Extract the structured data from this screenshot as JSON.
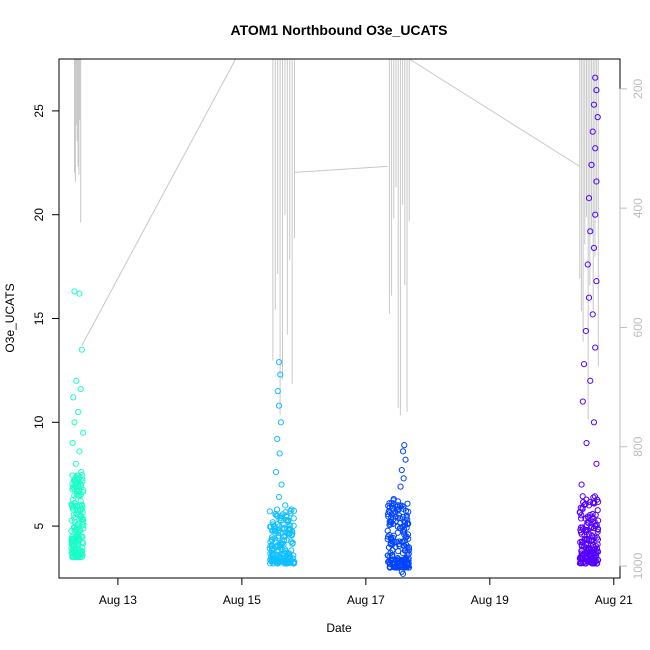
{
  "chart_data": {
    "type": "scatter",
    "title": "ATOM1 Northbound O3e_UCATS",
    "xlabel": "Date",
    "ylabel": "O3e_UCATS",
    "x_unit": "days (August)",
    "xlim": [
      12.05,
      21.1
    ],
    "ylim": [
      2.5,
      27.5
    ],
    "x_ticks": [
      {
        "value": 13,
        "label": "Aug 13"
      },
      {
        "value": 15,
        "label": "Aug 15"
      },
      {
        "value": 17,
        "label": "Aug 17"
      },
      {
        "value": 19,
        "label": "Aug 19"
      },
      {
        "value": 21,
        "label": "Aug 21"
      }
    ],
    "y_ticks": [
      5,
      10,
      15,
      20,
      25
    ],
    "y2_ticks": [
      200,
      400,
      600,
      800,
      1000
    ],
    "y2_range": [
      1020,
      150
    ],
    "grid": false,
    "series": [
      {
        "color": "#1bffc8",
        "x_range": [
          12.25,
          12.45
        ],
        "y_base_range": [
          3.5,
          7.5
        ],
        "y_max": 16.3,
        "points": [
          [
            12.3,
            16.3
          ],
          [
            12.38,
            16.2
          ],
          [
            12.42,
            13.5
          ],
          [
            12.33,
            12.0
          ],
          [
            12.4,
            11.6
          ],
          [
            12.28,
            11.2
          ],
          [
            12.36,
            10.5
          ],
          [
            12.3,
            10.0
          ],
          [
            12.44,
            9.5
          ],
          [
            12.27,
            9.0
          ],
          [
            12.38,
            8.6
          ],
          [
            12.32,
            8.0
          ],
          [
            12.41,
            7.6
          ],
          [
            12.29,
            7.2
          ],
          [
            12.35,
            6.8
          ],
          [
            12.4,
            6.5
          ],
          [
            12.26,
            6.0
          ],
          [
            12.33,
            5.6
          ],
          [
            12.43,
            5.2
          ],
          [
            12.3,
            4.8
          ],
          [
            12.37,
            4.4
          ],
          [
            12.28,
            4.0
          ],
          [
            12.42,
            3.8
          ],
          [
            12.34,
            3.6
          ],
          [
            12.39,
            3.5
          ]
        ]
      },
      {
        "color": "#10bfff",
        "x_range": [
          15.45,
          15.85
        ],
        "y_base_range": [
          3.2,
          5.8
        ],
        "y_max": 12.9,
        "points": [
          [
            15.6,
            12.9
          ],
          [
            15.62,
            12.3
          ],
          [
            15.58,
            11.5
          ],
          [
            15.6,
            10.8
          ],
          [
            15.63,
            10.0
          ],
          [
            15.57,
            9.2
          ],
          [
            15.61,
            8.5
          ],
          [
            15.55,
            7.6
          ],
          [
            15.64,
            7.0
          ],
          [
            15.6,
            6.4
          ],
          [
            15.7,
            6.0
          ],
          [
            15.8,
            5.8
          ],
          [
            15.75,
            5.2
          ],
          [
            15.5,
            4.8
          ],
          [
            15.68,
            4.5
          ],
          [
            15.82,
            4.2
          ],
          [
            15.52,
            3.9
          ],
          [
            15.72,
            3.7
          ],
          [
            15.78,
            3.5
          ],
          [
            15.66,
            3.3
          ],
          [
            15.58,
            3.2
          ]
        ]
      },
      {
        "color": "#0044ff",
        "x_range": [
          17.35,
          17.7
        ],
        "y_base_range": [
          3.0,
          6.3
        ],
        "y_max": 8.9,
        "points": [
          [
            17.62,
            8.9
          ],
          [
            17.6,
            8.6
          ],
          [
            17.64,
            8.2
          ],
          [
            17.58,
            7.7
          ],
          [
            17.61,
            7.3
          ],
          [
            17.56,
            6.9
          ],
          [
            17.45,
            6.3
          ],
          [
            17.38,
            6.1
          ],
          [
            17.5,
            5.8
          ],
          [
            17.66,
            5.5
          ],
          [
            17.4,
            5.2
          ],
          [
            17.55,
            4.9
          ],
          [
            17.68,
            4.6
          ],
          [
            17.42,
            4.3
          ],
          [
            17.48,
            4.0
          ],
          [
            17.6,
            3.7
          ],
          [
            17.52,
            3.4
          ],
          [
            17.63,
            3.1
          ],
          [
            17.58,
            2.8
          ],
          [
            17.6,
            2.7
          ]
        ]
      },
      {
        "color": "#5500ff",
        "x_range": [
          20.45,
          20.75
        ],
        "y_base_range": [
          3.2,
          6.5
        ],
        "y_max": 26.6,
        "points": [
          [
            20.7,
            26.6
          ],
          [
            20.72,
            26.0
          ],
          [
            20.68,
            25.3
          ],
          [
            20.74,
            24.7
          ],
          [
            20.66,
            24.0
          ],
          [
            20.7,
            23.2
          ],
          [
            20.64,
            22.4
          ],
          [
            20.72,
            21.6
          ],
          [
            20.6,
            20.8
          ],
          [
            20.7,
            20.0
          ],
          [
            20.62,
            19.2
          ],
          [
            20.68,
            18.4
          ],
          [
            20.58,
            17.6
          ],
          [
            20.72,
            16.8
          ],
          [
            20.6,
            16.0
          ],
          [
            20.66,
            15.2
          ],
          [
            20.55,
            14.4
          ],
          [
            20.7,
            13.6
          ],
          [
            20.52,
            12.8
          ],
          [
            20.62,
            12.0
          ],
          [
            20.5,
            11.0
          ],
          [
            20.68,
            10.0
          ],
          [
            20.56,
            9.0
          ],
          [
            20.72,
            8.0
          ],
          [
            20.48,
            7.0
          ],
          [
            20.6,
            6.0
          ],
          [
            20.7,
            5.0
          ],
          [
            20.5,
            4.2
          ],
          [
            20.64,
            3.6
          ],
          [
            20.55,
            3.2
          ]
        ]
      }
    ],
    "secondary_trace": {
      "color": "#c8c8c8",
      "y2_axis": "right",
      "connectors": [
        [
          [
            12.42,
            630
          ],
          [
            14.9,
            120
          ]
        ],
        [
          [
            15.85,
            340
          ],
          [
            17.35,
            330
          ]
        ],
        [
          [
            17.7,
            115
          ],
          [
            20.45,
            330
          ]
        ]
      ],
      "spikes": [
        [
          12.3,
          12.4,
          120,
          450,
          8
        ],
        [
          15.5,
          15.85,
          120,
          850,
          10
        ],
        [
          17.38,
          17.7,
          120,
          760,
          10
        ],
        [
          20.45,
          20.75,
          120,
          760,
          12
        ]
      ]
    }
  }
}
